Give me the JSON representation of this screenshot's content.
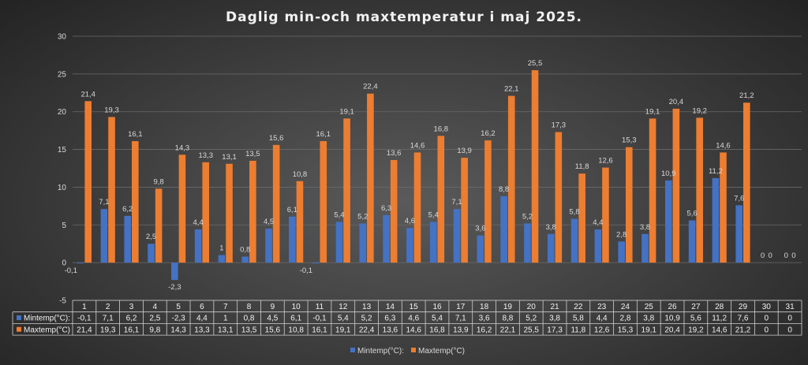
{
  "chart_data": {
    "type": "bar",
    "title": "Daglig min-och maxtemperatur i maj 2025.",
    "ylim": [
      -5,
      30
    ],
    "yticks": [
      -5,
      0,
      5,
      10,
      15,
      20,
      25,
      30
    ],
    "grid": true,
    "legend_position": "bottom",
    "categories": [
      "1",
      "2",
      "3",
      "4",
      "5",
      "6",
      "7",
      "8",
      "9",
      "10",
      "11",
      "12",
      "13",
      "14",
      "15",
      "16",
      "17",
      "18",
      "19",
      "20",
      "21",
      "22",
      "23",
      "24",
      "25",
      "26",
      "27",
      "28",
      "29",
      "30",
      "31"
    ],
    "series": [
      {
        "name": "Mintemp(°C):",
        "color": "#4472c4",
        "values": [
          -0.1,
          7.1,
          6.2,
          2.5,
          -2.3,
          4.4,
          1,
          0.8,
          4.5,
          6.1,
          -0.1,
          5.4,
          5.2,
          6.3,
          4.6,
          5.4,
          7.1,
          3.6,
          8.8,
          5.2,
          3.8,
          5.8,
          4.4,
          2.8,
          3.8,
          10.9,
          5.6,
          11.2,
          7.6,
          0,
          0
        ],
        "labels": [
          "-0,1",
          "7,1",
          "6,2",
          "2,5",
          "-2,3",
          "4,4",
          "1",
          "0,8",
          "4,5",
          "6,1",
          "-0,1",
          "5,4",
          "5,2",
          "6,3",
          "4,6",
          "5,4",
          "7,1",
          "3,6",
          "8,8",
          "5,2",
          "3,8",
          "5,8",
          "4,4",
          "2,8",
          "3,8",
          "10,9",
          "5,6",
          "11,2",
          "7,6",
          "0",
          "0"
        ]
      },
      {
        "name": "Maxtemp(°C)",
        "color": "#ed7d31",
        "values": [
          21.4,
          19.3,
          16.1,
          9.8,
          14.3,
          13.3,
          13.1,
          13.5,
          15.6,
          10.8,
          16.1,
          19.1,
          22.4,
          13.6,
          14.6,
          16.8,
          13.9,
          16.2,
          22.1,
          25.5,
          17.3,
          11.8,
          12.6,
          15.3,
          19.1,
          20.4,
          19.2,
          14.6,
          21.2,
          0,
          0
        ],
        "labels": [
          "21,4",
          "19,3",
          "16,1",
          "9,8",
          "14,3",
          "13,3",
          "13,1",
          "13,5",
          "15,6",
          "10,8",
          "16,1",
          "19,1",
          "22,4",
          "13,6",
          "14,6",
          "16,8",
          "13,9",
          "16,2",
          "22,1",
          "25,5",
          "17,3",
          "11,8",
          "12,6",
          "15,3",
          "19,1",
          "20,4",
          "19,2",
          "14,6",
          "21,2",
          "0",
          "0"
        ]
      }
    ]
  }
}
